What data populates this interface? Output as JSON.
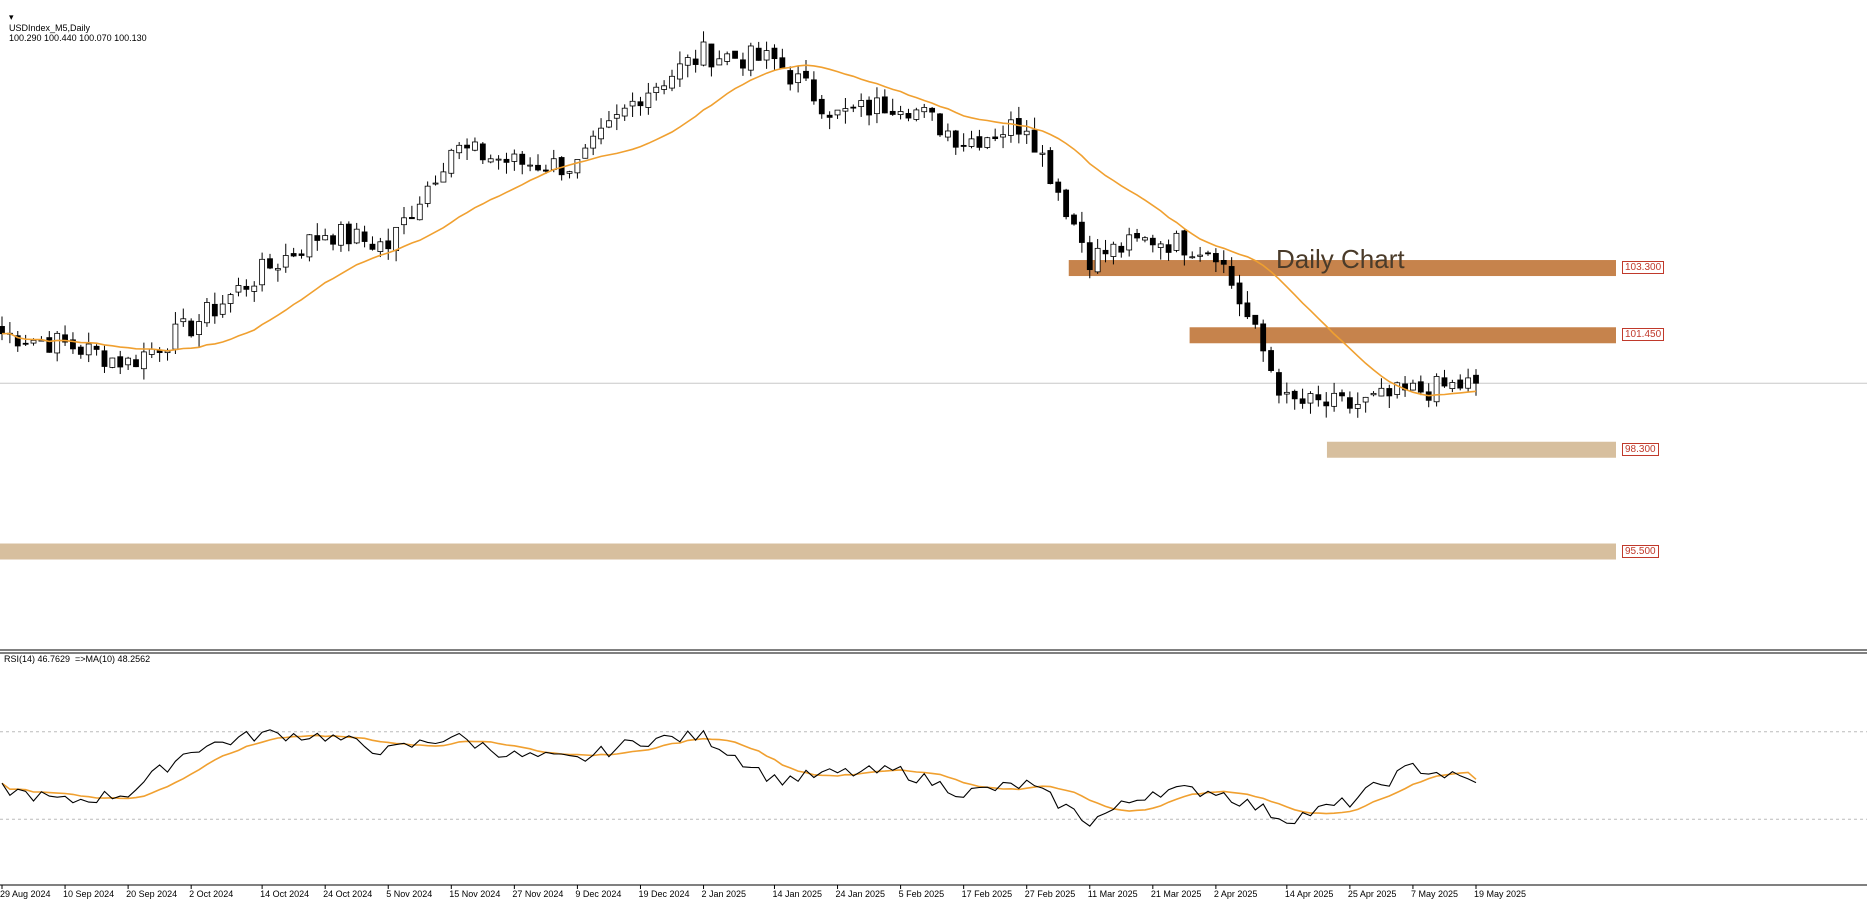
{
  "header": {
    "title": "USDIndex_M5,Daily",
    "ohlc": "100.290 100.440 100.070 100.130",
    "rsi_label": "RSI(14) 46.7629  =>MA(10) 48.2562"
  },
  "annotation": "Daily Chart",
  "chart_data": {
    "type": "candlestick",
    "price_last": 100.13,
    "ylim_price": [
      92.9,
      110.4
    ],
    "levels": [
      {
        "label": "103.300",
        "value": 103.3,
        "color": "#c6834c",
        "from": "2025-03-07"
      },
      {
        "label": "101.450",
        "value": 101.45,
        "color": "#c6834c",
        "from": "2025-03-28"
      },
      {
        "label": "98.300",
        "value": 98.3,
        "color": "#d7bf9e",
        "from": "2025-04-21"
      },
      {
        "label": "95.500",
        "value": 95.5,
        "color": "#d7bf9e",
        "from": "2024-08-29"
      }
    ],
    "x_ticks": [
      "29 Aug 2024",
      "10 Sep 2024",
      "20 Sep 2024",
      "2 Oct 2024",
      "14 Oct 2024",
      "24 Oct 2024",
      "5 Nov 2024",
      "15 Nov 2024",
      "27 Nov 2024",
      "9 Dec 2024",
      "19 Dec 2024",
      "2 Jan 2025",
      "14 Jan 2025",
      "24 Jan 2025",
      "5 Feb 2025",
      "17 Feb 2025",
      "27 Feb 2025",
      "11 Mar 2025",
      "21 Mar 2025",
      "2 Apr 2025",
      "14 Apr 2025",
      "25 Apr 2025",
      "7 May 2025",
      "19 May 2025"
    ],
    "close_anchors": [
      [
        "29 Aug 2024",
        101.5
      ],
      [
        "10 Sep 2024",
        101.2
      ],
      [
        "20 Sep 2024",
        100.7
      ],
      [
        "2 Oct 2024",
        101.7
      ],
      [
        "14 Oct 2024",
        103.2
      ],
      [
        "24 Oct 2024",
        104.3
      ],
      [
        "5 Nov 2024",
        103.9
      ],
      [
        "15 Nov 2024",
        106.6
      ],
      [
        "27 Nov 2024",
        106.2
      ],
      [
        "9 Dec 2024",
        106.1
      ],
      [
        "19 Dec 2024",
        108.1
      ],
      [
        "2 Jan 2025",
        109.2
      ],
      [
        "14 Jan 2025",
        109.0
      ],
      [
        "24 Jan 2025",
        107.5
      ],
      [
        "5 Feb 2025",
        107.9
      ],
      [
        "17 Feb 2025",
        106.8
      ],
      [
        "27 Feb 2025",
        107.3
      ],
      [
        "11 Mar 2025",
        103.6
      ],
      [
        "21 Mar 2025",
        104.1
      ],
      [
        "2 Apr 2025",
        103.8
      ],
      [
        "14 Apr 2025",
        99.6
      ],
      [
        "25 Apr 2025",
        99.5
      ],
      [
        "7 May 2025",
        99.9
      ],
      [
        "19 May 2025",
        100.13
      ]
    ],
    "ma_label": "MA",
    "ma_color": "#f0a030",
    "rsi": {
      "ylim": [
        0,
        100
      ],
      "levels": [
        70,
        30
      ],
      "anchors": [
        [
          "29 Aug 2024",
          44
        ],
        [
          "10 Sep 2024",
          38
        ],
        [
          "20 Sep 2024",
          42
        ],
        [
          "2 Oct 2024",
          62
        ],
        [
          "14 Oct 2024",
          69
        ],
        [
          "24 Oct 2024",
          68
        ],
        [
          "5 Nov 2024",
          61
        ],
        [
          "15 Nov 2024",
          68
        ],
        [
          "27 Nov 2024",
          59
        ],
        [
          "9 Dec 2024",
          57
        ],
        [
          "19 Dec 2024",
          66
        ],
        [
          "2 Jan 2025",
          68
        ],
        [
          "14 Jan 2025",
          48
        ],
        [
          "24 Jan 2025",
          51
        ],
        [
          "5 Feb 2025",
          52
        ],
        [
          "17 Feb 2025",
          42
        ],
        [
          "27 Feb 2025",
          46
        ],
        [
          "11 Mar 2025",
          29
        ],
        [
          "21 Mar 2025",
          43
        ],
        [
          "2 Apr 2025",
          43
        ],
        [
          "14 Apr 2025",
          30
        ],
        [
          "25 Apr 2025",
          38
        ],
        [
          "7 May 2025",
          54
        ],
        [
          "19 May 2025",
          46.76
        ]
      ],
      "ma_last": 48.26
    },
    "colors": {
      "up": "#ffffff",
      "down": "#000000",
      "wick": "#000000",
      "rsi_line": "#000000",
      "rsi_ma": "#f0a030",
      "grid": "#bbbbbb"
    }
  }
}
